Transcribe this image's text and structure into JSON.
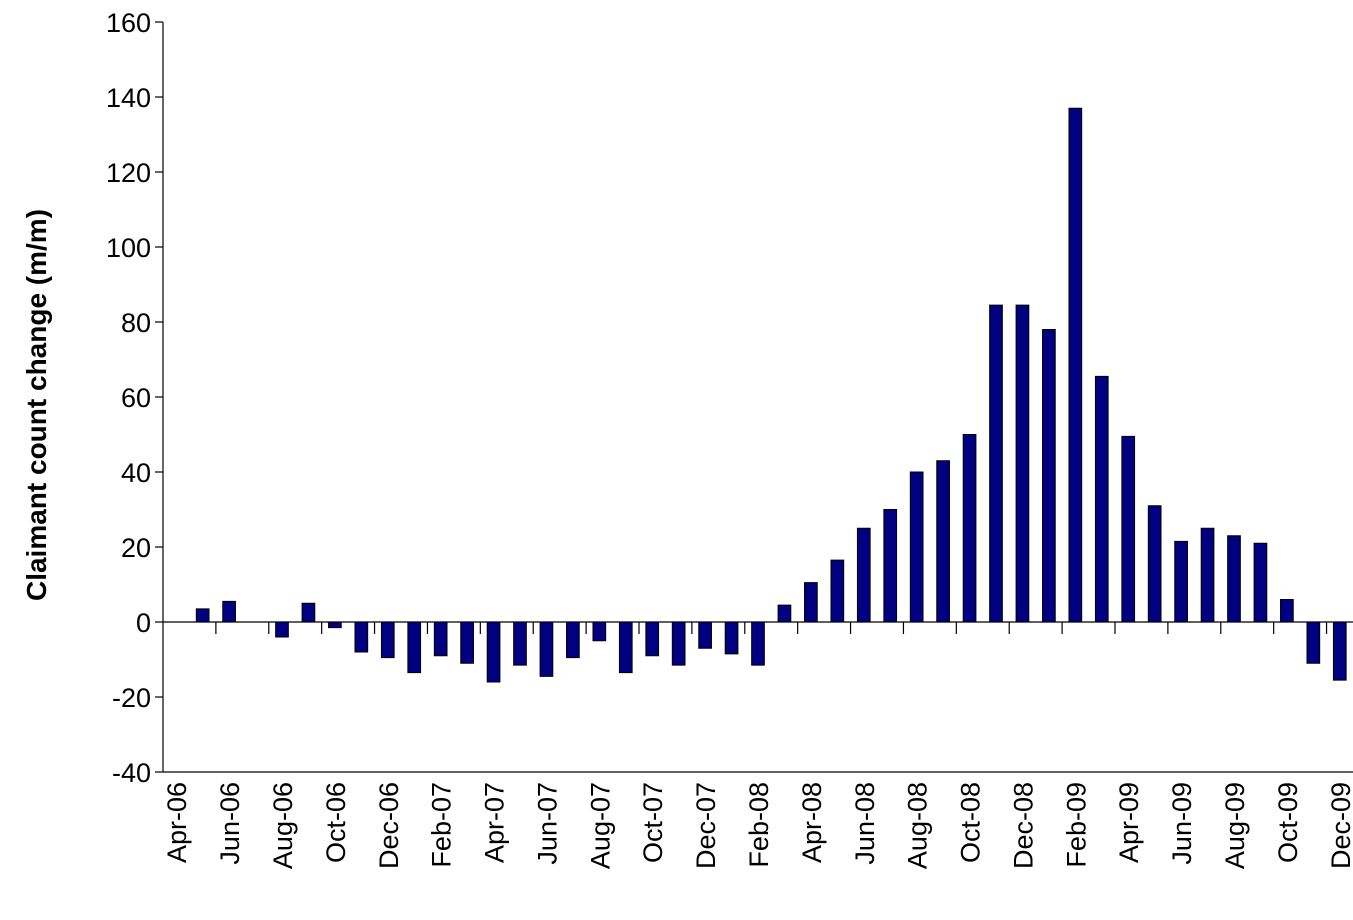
{
  "chart_data": {
    "type": "bar",
    "y_label": "Claimant count change (m/m)",
    "categories": [
      "Apr-06",
      null,
      "Jun-06",
      null,
      "Aug-06",
      null,
      "Oct-06",
      null,
      "Dec-06",
      null,
      "Feb-07",
      null,
      "Apr-07",
      null,
      "Jun-07",
      null,
      "Aug-07",
      null,
      "Oct-07",
      null,
      "Dec-07",
      null,
      "Feb-08",
      null,
      "Apr-08",
      null,
      "Jun-08",
      null,
      "Aug-08",
      null,
      "Oct-08",
      null,
      "Dec-08",
      null,
      "Feb-09",
      null,
      "Apr-09",
      null,
      "Jun-09",
      null,
      "Aug-09",
      null,
      "Oct-09",
      null,
      "Dec-09"
    ],
    "values": [
      null,
      3.5,
      5.5,
      null,
      -4,
      5,
      -1.5,
      -8,
      -9.5,
      -13.5,
      -9,
      -11,
      -16,
      -11.5,
      -14.5,
      -9.5,
      -5,
      -13.5,
      -9,
      -11.5,
      -7,
      -8.5,
      -11.5,
      4.5,
      10.5,
      16.5,
      25,
      30,
      40,
      43,
      50,
      84.5,
      84.5,
      78,
      137,
      65.5,
      49.5,
      31,
      21.5,
      25,
      23,
      21,
      6,
      -11,
      -15.5
    ],
    "color": "#000080",
    "ylim": [
      -40,
      160
    ],
    "yticks": [
      -40,
      -20,
      0,
      20,
      40,
      60,
      80,
      100,
      120,
      140,
      160
    ],
    "grid": false
  }
}
